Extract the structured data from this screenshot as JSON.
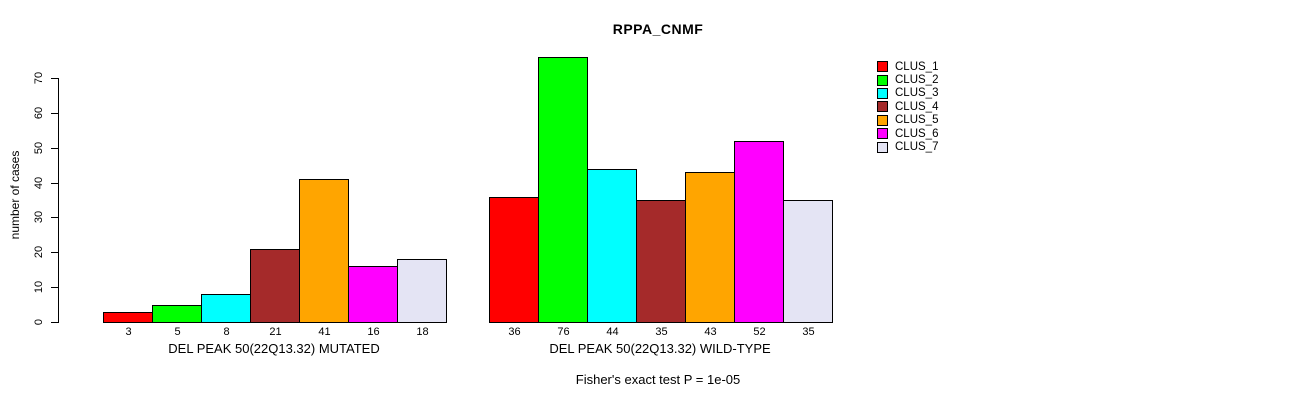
{
  "chart_data": {
    "type": "bar",
    "title": "RPPA_CNMF",
    "subtitle": "Fisher's exact test P = 1e-05",
    "ylabel": "number of cases",
    "ylim": [
      0,
      70
    ],
    "yticks": [
      0,
      10,
      20,
      30,
      40,
      50,
      60,
      70
    ],
    "grid": false,
    "legend_position": "top-right",
    "legend": [
      {
        "name": "CLUS_1",
        "color": "#FF0000"
      },
      {
        "name": "CLUS_2",
        "color": "#00FF00"
      },
      {
        "name": "CLUS_3",
        "color": "#00FFFF"
      },
      {
        "name": "CLUS_4",
        "color": "#A52A2A"
      },
      {
        "name": "CLUS_5",
        "color": "#FFA500"
      },
      {
        "name": "CLUS_6",
        "color": "#FF00FF"
      },
      {
        "name": "CLUS_7",
        "color": "#E4E4F4"
      }
    ],
    "groups": [
      {
        "label": "DEL PEAK 50(22Q13.32) MUTATED",
        "values": [
          3,
          5,
          8,
          21,
          41,
          16,
          18
        ]
      },
      {
        "label": "DEL PEAK 50(22Q13.32) WILD-TYPE",
        "values": [
          36,
          76,
          44,
          35,
          43,
          52,
          35
        ]
      }
    ]
  }
}
